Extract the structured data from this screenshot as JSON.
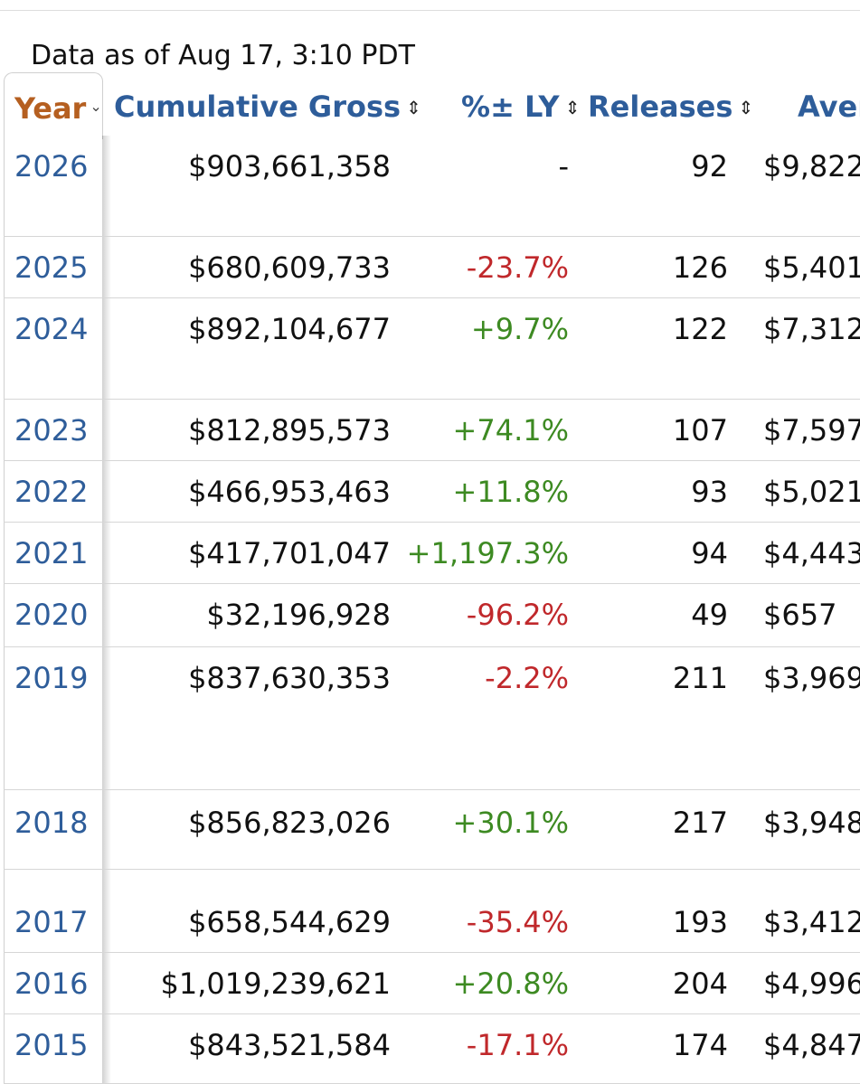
{
  "header": {
    "as_of": "Data as of Aug 17, 3:10 PDT"
  },
  "columns": {
    "year": "Year",
    "cumulative_gross": "Cumulative Gross",
    "pct_ly": "%± LY",
    "releases": "Releases",
    "average": "Aver"
  },
  "icons": {
    "sort": "⌃⌄ sort-icon",
    "dropdown": "chevron-down-icon"
  },
  "colors": {
    "year_header": "#b55f20",
    "link_blue": "#2e5d9a",
    "negative": "#c0282b",
    "positive": "#3d8a22"
  },
  "rows": [
    {
      "year": "2026",
      "gross": "$903,661,358",
      "ly": "-",
      "ly_sign": "neutral",
      "releases": "92",
      "avg": "$9,822"
    },
    {
      "year": "2025",
      "gross": "$680,609,733",
      "ly": "-23.7%",
      "ly_sign": "neg",
      "releases": "126",
      "avg": "$5,401"
    },
    {
      "year": "2024",
      "gross": "$892,104,677",
      "ly": "+9.7%",
      "ly_sign": "pos",
      "releases": "122",
      "avg": "$7,312"
    },
    {
      "year": "2023",
      "gross": "$812,895,573",
      "ly": "+74.1%",
      "ly_sign": "pos",
      "releases": "107",
      "avg": "$7,597"
    },
    {
      "year": "2022",
      "gross": "$466,953,463",
      "ly": "+11.8%",
      "ly_sign": "pos",
      "releases": "93",
      "avg": "$5,021"
    },
    {
      "year": "2021",
      "gross": "$417,701,047",
      "ly": "+1,197.3%",
      "ly_sign": "pos",
      "releases": "94",
      "avg": "$4,443"
    },
    {
      "year": "2020",
      "gross": "$32,196,928",
      "ly": "-96.2%",
      "ly_sign": "neg",
      "releases": "49",
      "avg": "$657"
    },
    {
      "year": "2019",
      "gross": "$837,630,353",
      "ly": "-2.2%",
      "ly_sign": "neg",
      "releases": "211",
      "avg": "$3,969"
    },
    {
      "year": "2018",
      "gross": "$856,823,026",
      "ly": "+30.1%",
      "ly_sign": "pos",
      "releases": "217",
      "avg": "$3,948"
    },
    {
      "year": "2017",
      "gross": "$658,544,629",
      "ly": "-35.4%",
      "ly_sign": "neg",
      "releases": "193",
      "avg": "$3,412"
    },
    {
      "year": "2016",
      "gross": "$1,019,239,621",
      "ly": "+20.8%",
      "ly_sign": "pos",
      "releases": "204",
      "avg": "$4,996"
    },
    {
      "year": "2015",
      "gross": "$843,521,584",
      "ly": "-17.1%",
      "ly_sign": "neg",
      "releases": "174",
      "avg": "$4,847"
    }
  ]
}
